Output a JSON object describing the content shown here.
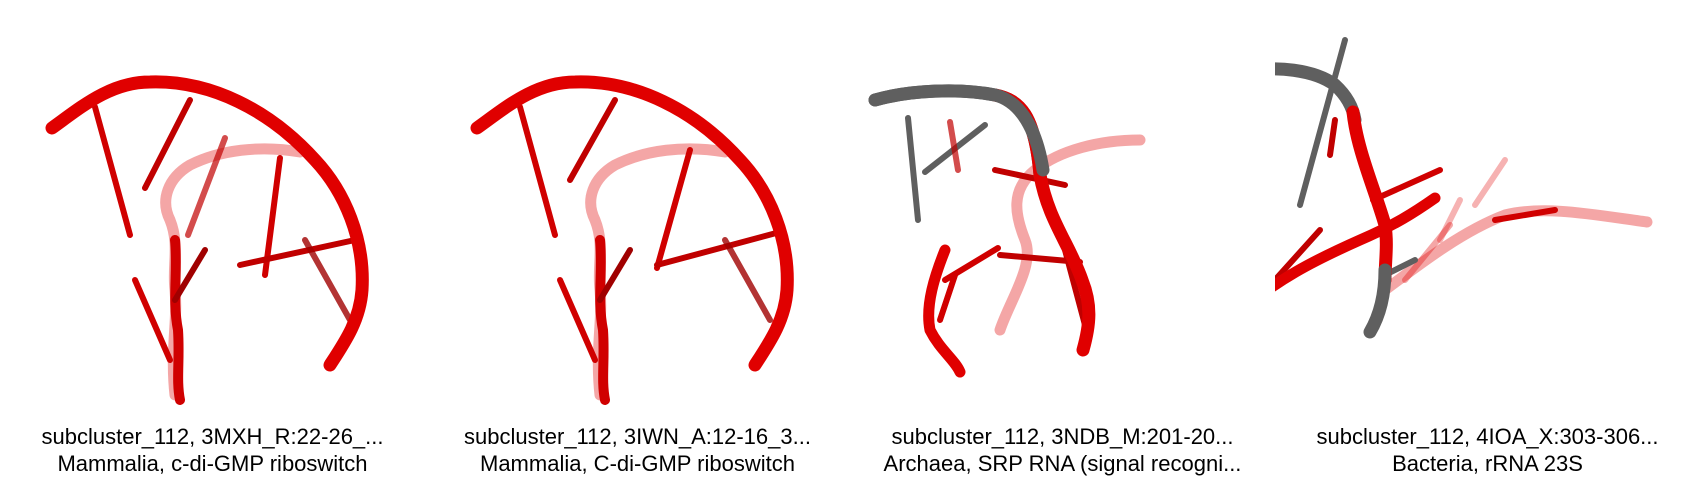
{
  "panels": [
    {
      "line1": "subcluster_112, 3MXH_R:22-26_...",
      "line2": "Mammalia, c-di-GMP riboswitch",
      "structure_icon": "rna-structure-red"
    },
    {
      "line1": "subcluster_112, 3IWN_A:12-16_3...",
      "line2": "Mammalia, C-di-GMP riboswitch",
      "structure_icon": "rna-structure-red"
    },
    {
      "line1": "subcluster_112, 3NDB_M:201-20...",
      "line2": "Archaea, SRP RNA (signal recogni...",
      "structure_icon": "rna-structure-red-gray"
    },
    {
      "line1": "subcluster_112, 4IOA_X:303-306...",
      "line2": "Bacteria, rRNA 23S",
      "structure_icon": "rna-structure-red-gray"
    }
  ],
  "colors": {
    "red": "#e00000",
    "gray": "#5f5f5f"
  }
}
